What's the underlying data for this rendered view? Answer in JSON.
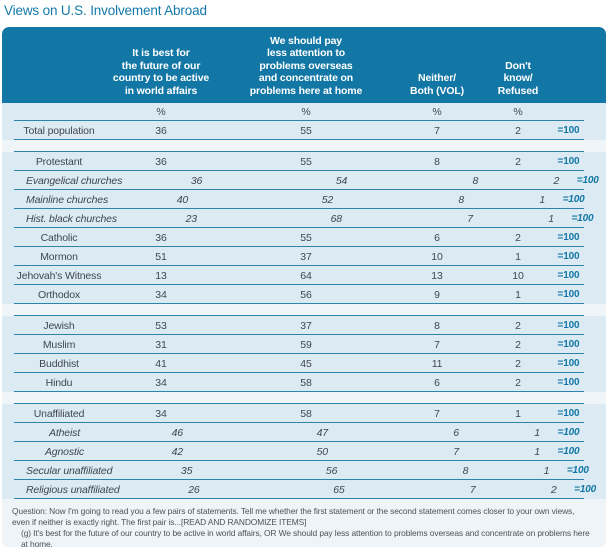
{
  "chart_data": {
    "type": "table",
    "title": "Views on U.S. Involvement Abroad",
    "column_headers": [
      "It is best for\nthe future of our\ncountry to be active\nin world affairs",
      "We should pay\nless attention to\nproblems overseas\nand concentrate on\nproblems here at home",
      "Neither/\nBoth (VOL)",
      "Don't\nknow/\nRefused"
    ],
    "unit_row": [
      "%",
      "%",
      "%",
      "%"
    ],
    "row_total_label": "=100",
    "sections": [
      {
        "rows": [
          {
            "label": "Total population",
            "sub": false,
            "values": [
              36,
              55,
              7,
              2
            ]
          }
        ]
      },
      {
        "rows": [
          {
            "label": "Protestant",
            "sub": false,
            "values": [
              36,
              55,
              8,
              2
            ]
          },
          {
            "label": "Evangelical churches",
            "sub": true,
            "values": [
              36,
              54,
              8,
              2
            ]
          },
          {
            "label": "Mainline churches",
            "sub": true,
            "values": [
              40,
              52,
              8,
              1
            ]
          },
          {
            "label": "Hist. black churches",
            "sub": true,
            "values": [
              23,
              68,
              7,
              1
            ]
          },
          {
            "label": "Catholic",
            "sub": false,
            "values": [
              36,
              55,
              6,
              2
            ]
          },
          {
            "label": "Mormon",
            "sub": false,
            "values": [
              51,
              37,
              10,
              1
            ]
          },
          {
            "label": "Jehovah's Witness",
            "sub": false,
            "values": [
              13,
              64,
              13,
              10
            ]
          },
          {
            "label": "Orthodox",
            "sub": false,
            "values": [
              34,
              56,
              9,
              1
            ]
          }
        ]
      },
      {
        "rows": [
          {
            "label": "Jewish",
            "sub": false,
            "values": [
              53,
              37,
              8,
              2
            ]
          },
          {
            "label": "Muslim",
            "sub": false,
            "values": [
              31,
              59,
              7,
              2
            ]
          },
          {
            "label": "Buddhist",
            "sub": false,
            "values": [
              41,
              45,
              11,
              2
            ]
          },
          {
            "label": "Hindu",
            "sub": false,
            "values": [
              34,
              58,
              6,
              2
            ]
          }
        ]
      },
      {
        "rows": [
          {
            "label": "Unaffiliated",
            "sub": false,
            "values": [
              34,
              58,
              7,
              1
            ]
          },
          {
            "label": "Atheist",
            "sub": true,
            "values": [
              46,
              47,
              6,
              1
            ]
          },
          {
            "label": "Agnostic",
            "sub": true,
            "values": [
              42,
              50,
              7,
              1
            ]
          },
          {
            "label": "Secular unaffiliated",
            "sub": true,
            "values": [
              35,
              56,
              8,
              1
            ]
          },
          {
            "label": "Religious unaffiliated",
            "sub": true,
            "values": [
              26,
              65,
              7,
              2
            ]
          }
        ]
      }
    ],
    "footnote_question": "Question: Now I'm going to read you a few pairs of statements. Tell me whether the first statement or the second statement comes closer to your own views, even if neither is exactly right. The first pair is...[READ AND RANDOMIZE ITEMS]",
    "footnote_item": "(g) It's best for the future of our country to be active in world affairs, OR We should pay less attention to problems overseas and concentrate on problems here at home."
  },
  "colors": {
    "accent_teal": "#1377a6",
    "row_band": "#dcebf3",
    "panel_background": "#eef4f8",
    "separator_line": "#3182ab",
    "body_text": "#3e474e"
  }
}
